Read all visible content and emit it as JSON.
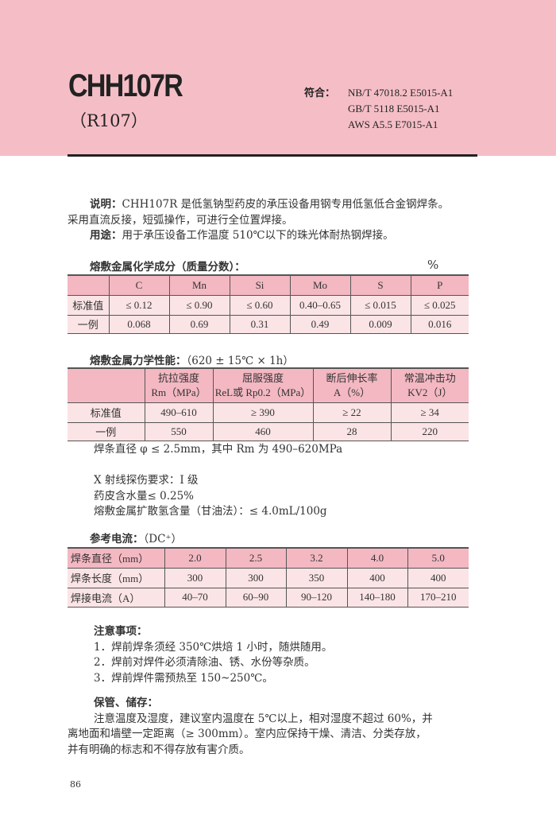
{
  "header": {
    "title": "CHH107R",
    "subtitle": "（R107）",
    "standards_label": "符合：",
    "standards": [
      "NB/T 47018.2 E5015-A1",
      "GB/T 5118 E5015-A1",
      "AWS A5.5 E7015-A1"
    ]
  },
  "description": {
    "label": "说明：",
    "text1": "CHH107R 是低氢钠型药皮的承压设备用钢专用低氢低合金钢焊条。",
    "text2": "采用直流反接，短弧操作，可进行全位置焊接。",
    "usage_label": "用途：",
    "usage": "用于承压设备工作温度 510℃以下的珠光体耐热钢焊接。"
  },
  "chem": {
    "heading": "熔敷金属化学成分（质量分数）：",
    "unit": "%",
    "headers": [
      "",
      "C",
      "Mn",
      "Si",
      "Mo",
      "S",
      "P"
    ],
    "rows": [
      [
        "标准值",
        "≤ 0.12",
        "≤ 0.90",
        "≤ 0.60",
        "0.40–0.65",
        "≤ 0.015",
        "≤ 0.025"
      ],
      [
        "一例",
        "0.068",
        "0.69",
        "0.31",
        "0.49",
        "0.009",
        "0.016"
      ]
    ]
  },
  "mech": {
    "heading": "熔敷金属力学性能：",
    "condition": "（620 ± 15℃ × 1h）",
    "headers": [
      [
        "",
        ""
      ],
      [
        "抗拉强度",
        "Rm（MPa）"
      ],
      [
        "屈服强度",
        "ReL或 Rp0.2（MPa）"
      ],
      [
        "断后伸长率",
        "A（%）"
      ],
      [
        "常温冲击功",
        "KV2（J）"
      ]
    ],
    "rows": [
      [
        "标准值",
        "490–610",
        "≥ 390",
        "≥ 22",
        "≥ 34"
      ],
      [
        "一例",
        "550",
        "460",
        "28",
        "220"
      ]
    ],
    "note": "焊条直径 φ ≤ 2.5mm，其中 Rm 为 490–620MPa"
  },
  "extra": [
    "X 射线探伤要求：I 级",
    "药皮含水量≤ 0.25%",
    "熔敷金属扩散氢含量（甘油法）：≤ 4.0mL/100g"
  ],
  "current": {
    "heading": "参考电流：",
    "type": "（DC⁺）",
    "rows": [
      [
        "焊条直径（mm）",
        "2.0",
        "2.5",
        "3.2",
        "4.0",
        "5.0"
      ],
      [
        "焊条长度（mm）",
        "300",
        "300",
        "350",
        "400",
        "400"
      ],
      [
        "焊接电流（A）",
        "40–70",
        "60–90",
        "90–120",
        "140–180",
        "170–210"
      ]
    ]
  },
  "notes": {
    "heading": "注意事项：",
    "items": [
      "1．焊前焊条须经 350℃烘焙 1 小时，随烘随用。",
      "2．焊前对焊件必须清除油、锈、水份等杂质。",
      "3．焊前焊件需预热至 150~250℃。"
    ]
  },
  "storage": {
    "heading": "保管、储存：",
    "lines": [
      "注意温度及湿度，建议室内温度在 5℃以上，相对湿度不超过 60%，并",
      "离地面和墙壁一定距离（≥ 300mm）。室内应保持干燥、清洁、分类存放，",
      "并有明确的标志和不得存放有害介质。"
    ]
  },
  "page_number": "86",
  "colors": {
    "band": "#f5bec6",
    "table_header": "#f3b8c2",
    "table_row": "#fbe4e5"
  }
}
